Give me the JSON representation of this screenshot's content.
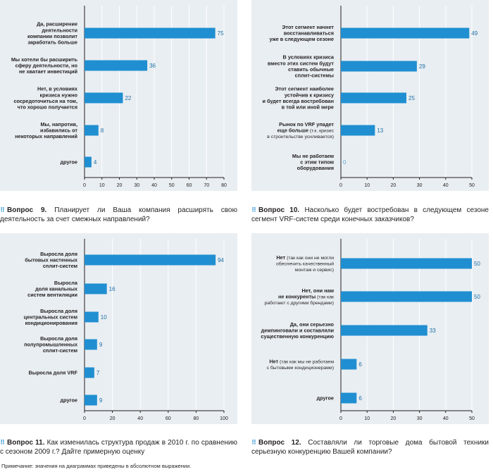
{
  "chart_data": [
    {
      "type": "bar",
      "orientation": "horizontal",
      "question_num": "Вопрос 9.",
      "question_text": "Планирует ли Ваша компания расширять свою деятельность за счет смежных направлений?",
      "categories": [
        [
          {
            "t": "Да, расширение"
          },
          {
            "t": "деятельности"
          },
          {
            "t": "компании позволит"
          },
          {
            "t": "заработать больше"
          }
        ],
        [
          {
            "t": "Мы хотели бы расширить"
          },
          {
            "t": "сферу деятельности, но"
          },
          {
            "t": "не хватает инвестиций"
          }
        ],
        [
          {
            "t": "Нет, в условиях"
          },
          {
            "t": "кризиса нужно"
          },
          {
            "t": "сосредоточиться на том,"
          },
          {
            "t": "что хорошо получается"
          }
        ],
        [
          {
            "t": "Мы, напротив,"
          },
          {
            "t": "избавились от"
          },
          {
            "t": "некоторых направлений"
          }
        ],
        [
          {
            "t": "другое"
          }
        ]
      ],
      "values": [
        75,
        36,
        22,
        8,
        4
      ],
      "xlim": [
        0,
        80
      ],
      "ticks": [
        0,
        10,
        20,
        30,
        40,
        50,
        60,
        70,
        80
      ]
    },
    {
      "type": "bar",
      "orientation": "horizontal",
      "question_num": "Вопрос 10.",
      "question_text": "Насколько будет востребован в следующем сезоне сегмент VRF-систем среди конечных заказчиков?",
      "categories": [
        [
          {
            "t": "Этот сегмент начнет"
          },
          {
            "t": "восстанавливаться"
          },
          {
            "t": "уже в следующем сезоне"
          }
        ],
        [
          {
            "t": "В условиях кризиса"
          },
          {
            "t": "вместо этих систем будут"
          },
          {
            "t": "ставить обычные"
          },
          {
            "t": "сплит-системы"
          }
        ],
        [
          {
            "t": "Этот сегмент наиболее"
          },
          {
            "t": "устойчив к кризису"
          },
          {
            "t": "и будет всегда востребован"
          },
          {
            "t": "в той или иной мере"
          }
        ],
        [
          {
            "t": "Рынок по VRF упадет"
          },
          {
            "t": "еще больше",
            "s": " (т.к. кризис"
          },
          {
            "s": "в строительстве усиливается)"
          }
        ],
        [
          {
            "t": "Мы не работаем"
          },
          {
            "t": "с этим типом"
          },
          {
            "t": "оборудования"
          }
        ]
      ],
      "values": [
        49,
        29,
        25,
        13,
        0
      ],
      "xlim": [
        0,
        50
      ],
      "ticks": [
        0,
        10,
        20,
        30,
        40,
        50
      ]
    },
    {
      "type": "bar",
      "orientation": "horizontal",
      "question_num": "Вопрос 11.",
      "question_text": "Как изменилась структура продаж в 2010 г. по сравнению с сезоном 2009 г.? Дайте примерную оценку",
      "categories": [
        [
          {
            "t": "Выросла доля"
          },
          {
            "t": "бытовых настенных"
          },
          {
            "t": "сплит-систем"
          }
        ],
        [
          {
            "t": "Выросла"
          },
          {
            "t": "доля канальных"
          },
          {
            "t": "систем вентиляции"
          }
        ],
        [
          {
            "t": "Выросла доля"
          },
          {
            "t": "центральных систем"
          },
          {
            "t": "кондиционирования"
          }
        ],
        [
          {
            "t": "Выросла доля"
          },
          {
            "t": "полупромышленных"
          },
          {
            "t": "сплит-систем"
          }
        ],
        [
          {
            "t": "Выросла доля VRF"
          }
        ],
        [
          {
            "t": "другое"
          }
        ]
      ],
      "values": [
        94,
        16,
        10,
        9,
        7,
        9
      ],
      "xlim": [
        0,
        100
      ],
      "ticks": [
        0,
        20,
        40,
        60,
        80,
        100
      ]
    },
    {
      "type": "bar",
      "orientation": "horizontal",
      "question_num": "Вопрос 12.",
      "question_text": "Составляли ли торговые дома бытовой техники серьезную конкуренцию Вашей компании?",
      "categories": [
        [
          {
            "t": "Нет",
            "s": " (так как они не могли"
          },
          {
            "s": "обеспечить качественный"
          },
          {
            "s": "монтаж и сервис)"
          }
        ],
        [
          {
            "t": "Нет, они нам"
          },
          {
            "t": "не конкуренты",
            "s": " (так как"
          },
          {
            "s": "работают с другими брендами)"
          }
        ],
        [
          {
            "t": "Да, они серьезно"
          },
          {
            "t": "демпинговали и составляли"
          },
          {
            "t": "существенную конкуренцию"
          }
        ],
        [
          {
            "t": "Нет",
            "s": " (так как мы не работаем"
          },
          {
            "s": "с бытовыми кондиционерами)"
          }
        ],
        [
          {
            "t": "другое"
          }
        ]
      ],
      "values": [
        50,
        50,
        33,
        6,
        6
      ],
      "xlim": [
        0,
        50
      ],
      "ticks": [
        0,
        10,
        20,
        30,
        40,
        50
      ]
    }
  ],
  "footnote": "Примечание: значения на диаграммах приведены в абсолютном выражении."
}
